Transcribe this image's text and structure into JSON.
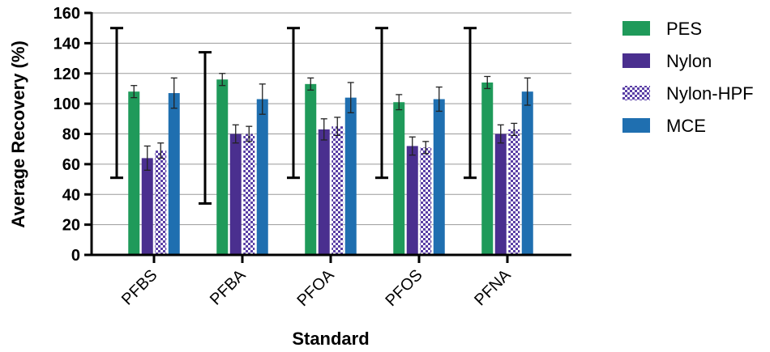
{
  "chart_data": {
    "type": "bar",
    "xlabel": "Standard",
    "ylabel": "Average Recovery (%)",
    "ylim": [
      0,
      160
    ],
    "yticks": [
      0,
      20,
      40,
      60,
      80,
      100,
      120,
      140,
      160
    ],
    "grid": "horizontal",
    "legend_position": "right",
    "categories": [
      "PFBS",
      "PFBA",
      "PFOA",
      "PFOS",
      "PFNA"
    ],
    "series": [
      {
        "name": "PES",
        "color": "#1f9a5a",
        "pattern": "solid",
        "values": [
          108,
          116,
          113,
          101,
          114
        ],
        "errors": [
          4,
          4,
          4,
          5,
          4
        ]
      },
      {
        "name": "Nylon",
        "color": "#4a2f8f",
        "pattern": "solid",
        "values": [
          64,
          80,
          83,
          72,
          80
        ],
        "errors": [
          8,
          6,
          7,
          6,
          6
        ]
      },
      {
        "name": "Nylon-HPF",
        "color": "#5a3fa5",
        "pattern": "checkered",
        "values": [
          69,
          80,
          85,
          71,
          83
        ],
        "errors": [
          5,
          5,
          6,
          4,
          4
        ]
      },
      {
        "name": "MCE",
        "color": "#1f6fb0",
        "pattern": "solid",
        "values": [
          107,
          103,
          104,
          103,
          108
        ],
        "errors": [
          10,
          10,
          10,
          8,
          9
        ]
      }
    ],
    "range_markers": [
      {
        "category": "PFBS",
        "low": 51,
        "high": 150
      },
      {
        "category": "PFBA",
        "low": 34,
        "high": 134
      },
      {
        "category": "PFOA",
        "low": 51,
        "high": 150
      },
      {
        "category": "PFOS",
        "low": 51,
        "high": 150
      },
      {
        "category": "PFNA",
        "low": 51,
        "high": 150
      }
    ]
  }
}
